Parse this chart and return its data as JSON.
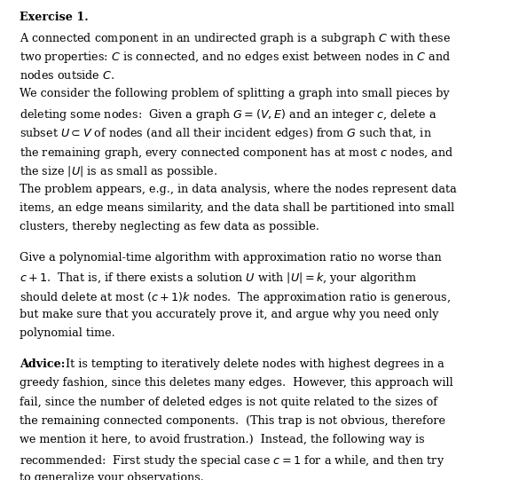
{
  "background_color": "#ffffff",
  "text_color": "#000000",
  "figsize": [
    5.85,
    5.41
  ],
  "dpi": 100,
  "title": "Exercise 1.",
  "paragraphs": [
    {
      "lines": [
        "A connected component in an undirected graph is a subgraph $C$ with these",
        "two properties: $C$ is connected, and no edges exist between nodes in $C$ and",
        "nodes outside $C$."
      ]
    },
    {
      "lines": [
        "We consider the following problem of splitting a graph into small pieces by",
        "deleting some nodes:  Given a graph $G = (V, E)$ and an integer $c$, delete a",
        "subset $U \\subset V$ of nodes (and all their incident edges) from $G$ such that, in",
        "the remaining graph, every connected component has at most $c$ nodes, and",
        "the size $|U|$ is as small as possible."
      ]
    },
    {
      "lines": [
        "The problem appears, e.g., in data analysis, where the nodes represent data",
        "items, an edge means similarity, and the data shall be partitioned into small",
        "clusters, thereby neglecting as few data as possible."
      ]
    },
    {
      "lines": [
        ""
      ]
    },
    {
      "lines": [
        "Give a polynomial-time algorithm with approximation ratio no worse than",
        "$c+1$.  That is, if there exists a solution $U$ with $|U| = k$, your algorithm",
        "should delete at most $(c+1)k$ nodes.  The approximation ratio is generous,",
        "but make sure that you accurately prove it, and argue why you need only",
        "polynomial time."
      ]
    },
    {
      "lines": [
        ""
      ]
    },
    {
      "lines": [
        "\\textbf{Advice:} It is tempting to iteratively delete nodes with highest degrees in a",
        "greedy fashion, since this deletes many edges.  However, this approach will",
        "fail, since the number of deleted edges is not quite related to the sizes of",
        "the remaining connected components.  (This trap is not obvious, therefore",
        "we mention it here, to avoid frustration.)  Instead, the following way is",
        "recommended:  First study the special case $c = 1$ for a while, and then try",
        "to generalize your observations."
      ]
    }
  ]
}
